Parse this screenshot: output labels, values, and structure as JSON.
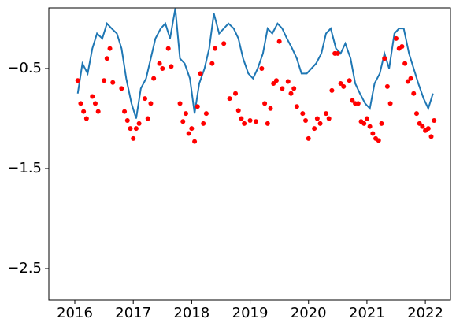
{
  "chart_data": {
    "type": "line",
    "xlim": [
      2015.555,
      2022.43
    ],
    "ylim": [
      -2.815,
      0.106
    ],
    "xticks": [
      2016,
      2017,
      2018,
      2019,
      2020,
      2021,
      2022
    ],
    "yticks": [
      {
        "value": -0.5,
        "label": "−0.5"
      },
      {
        "value": -1.5,
        "label": "−1.5"
      },
      {
        "value": -2.5,
        "label": "−2.5"
      }
    ],
    "series": [
      {
        "type": "line",
        "color": "#1f77b4",
        "x": [
          2016.05,
          2016.13,
          2016.22,
          2016.3,
          2016.38,
          2016.47,
          2016.55,
          2016.63,
          2016.72,
          2016.8,
          2016.88,
          2016.97,
          2017.05,
          2017.13,
          2017.22,
          2017.3,
          2017.38,
          2017.47,
          2017.55,
          2017.63,
          2017.72,
          2017.8,
          2017.88,
          2017.97,
          2018.05,
          2018.13,
          2018.22,
          2018.3,
          2018.38,
          2018.47,
          2018.55,
          2018.63,
          2018.72,
          2018.8,
          2018.88,
          2018.97,
          2019.05,
          2019.13,
          2019.22,
          2019.3,
          2019.38,
          2019.47,
          2019.55,
          2019.63,
          2019.72,
          2019.8,
          2019.88,
          2019.97,
          2020.05,
          2020.13,
          2020.22,
          2020.3,
          2020.38,
          2020.47,
          2020.55,
          2020.63,
          2020.72,
          2020.8,
          2020.88,
          2020.97,
          2021.05,
          2021.13,
          2021.22,
          2021.3,
          2021.38,
          2021.47,
          2021.55,
          2021.63,
          2021.72,
          2021.8,
          2021.88,
          2021.97,
          2022.05,
          2022.13
        ],
        "values": [
          -0.75,
          -0.45,
          -0.55,
          -0.3,
          -0.15,
          -0.2,
          -0.05,
          -0.1,
          -0.15,
          -0.3,
          -0.6,
          -0.85,
          -1.0,
          -0.7,
          -0.6,
          -0.4,
          -0.2,
          -0.1,
          -0.05,
          -0.2,
          0.1,
          -0.4,
          -0.45,
          -0.6,
          -0.95,
          -0.65,
          -0.5,
          -0.3,
          0.05,
          -0.15,
          -0.1,
          -0.05,
          -0.1,
          -0.2,
          -0.4,
          -0.55,
          -0.6,
          -0.5,
          -0.35,
          -0.1,
          -0.15,
          -0.05,
          -0.1,
          -0.2,
          -0.3,
          -0.4,
          -0.55,
          -0.55,
          -0.5,
          -0.45,
          -0.35,
          -0.15,
          -0.1,
          -0.3,
          -0.35,
          -0.25,
          -0.4,
          -0.65,
          -0.75,
          -0.85,
          -0.9,
          -0.65,
          -0.55,
          -0.35,
          -0.5,
          -0.15,
          -0.1,
          -0.1,
          -0.35,
          -0.5,
          -0.65,
          -0.8,
          -0.9,
          -0.75
        ]
      },
      {
        "type": "scatter",
        "color": "#ff0000",
        "x": [
          2016.05,
          2016.1,
          2016.15,
          2016.2,
          2016.3,
          2016.35,
          2016.4,
          2016.5,
          2016.55,
          2016.6,
          2016.65,
          2016.8,
          2016.85,
          2016.9,
          2016.95,
          2017.0,
          2017.05,
          2017.1,
          2017.2,
          2017.25,
          2017.3,
          2017.35,
          2017.45,
          2017.5,
          2017.6,
          2017.65,
          2017.8,
          2017.85,
          2017.9,
          2017.95,
          2018.0,
          2018.05,
          2018.1,
          2018.15,
          2018.2,
          2018.25,
          2018.35,
          2018.4,
          2018.55,
          2018.65,
          2018.75,
          2018.8,
          2018.85,
          2018.9,
          2019.0,
          2019.1,
          2019.2,
          2019.25,
          2019.3,
          2019.35,
          2019.4,
          2019.45,
          2019.5,
          2019.55,
          2019.65,
          2019.7,
          2019.75,
          2019.8,
          2019.9,
          2019.95,
          2020.0,
          2020.1,
          2020.15,
          2020.2,
          2020.3,
          2020.35,
          2020.4,
          2020.45,
          2020.5,
          2020.55,
          2020.6,
          2020.7,
          2020.75,
          2020.8,
          2020.85,
          2020.9,
          2020.95,
          2021.0,
          2021.05,
          2021.1,
          2021.15,
          2021.2,
          2021.25,
          2021.3,
          2021.35,
          2021.4,
          2021.5,
          2021.55,
          2021.6,
          2021.65,
          2021.7,
          2021.75,
          2021.8,
          2021.85,
          2021.9,
          2021.95,
          2022.0,
          2022.05,
          2022.1,
          2022.15
        ],
        "values": [
          -0.62,
          -0.85,
          -0.93,
          -1.0,
          -0.78,
          -0.85,
          -0.93,
          -0.62,
          -0.4,
          -0.3,
          -0.64,
          -0.7,
          -0.93,
          -1.02,
          -1.1,
          -1.2,
          -1.1,
          -1.05,
          -0.8,
          -1.0,
          -0.85,
          -0.6,
          -0.45,
          -0.5,
          -0.3,
          -0.48,
          -0.85,
          -1.03,
          -0.95,
          -1.15,
          -1.1,
          -1.23,
          -0.88,
          -0.55,
          -1.05,
          -0.95,
          -0.45,
          -0.3,
          -0.25,
          -0.8,
          -0.75,
          -0.92,
          -1.0,
          -1.05,
          -1.02,
          -1.03,
          -0.5,
          -0.85,
          -1.05,
          -0.9,
          -0.65,
          -0.62,
          -0.23,
          -0.7,
          -0.63,
          -0.75,
          -0.7,
          -0.88,
          -0.95,
          -1.02,
          -1.2,
          -1.1,
          -1.0,
          -1.05,
          -0.95,
          -1.0,
          -0.72,
          -0.35,
          -0.35,
          -0.65,
          -0.68,
          -0.62,
          -0.82,
          -0.85,
          -0.85,
          -1.03,
          -1.05,
          -1.0,
          -1.08,
          -1.15,
          -1.2,
          -1.22,
          -1.05,
          -0.4,
          -0.68,
          -0.85,
          -0.2,
          -0.3,
          -0.28,
          -0.45,
          -0.63,
          -0.6,
          -0.75,
          -0.95,
          -1.05,
          -1.08,
          -1.12,
          -1.1,
          -1.18,
          -1.02
        ]
      }
    ]
  }
}
